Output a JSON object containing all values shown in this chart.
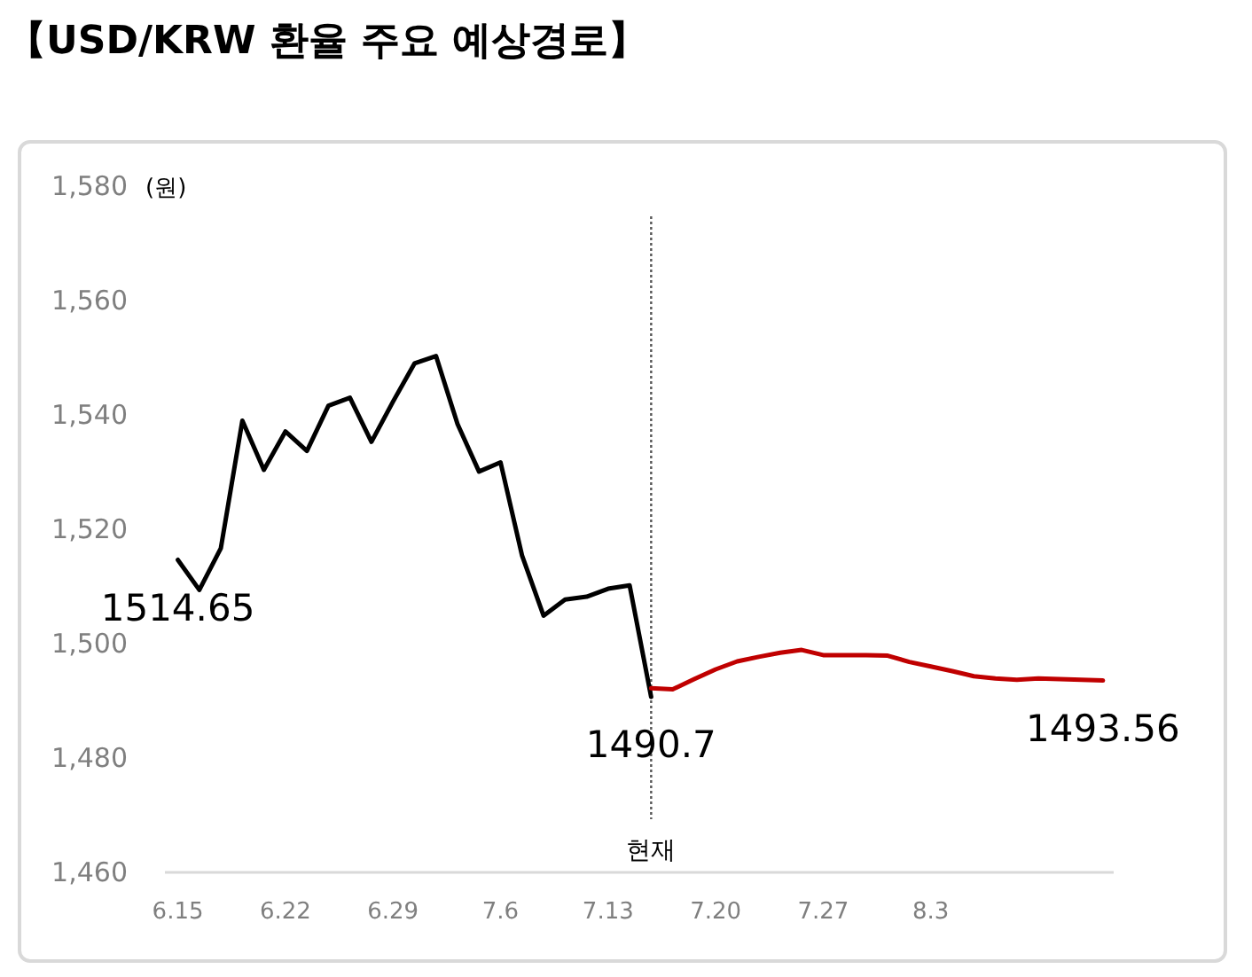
{
  "chart_data": {
    "type": "line",
    "title": "【USD/KRW 환율 주요 예상경로】",
    "ylabel": "(원)",
    "categories": [
      "6.15",
      null,
      null,
      null,
      null,
      "6.22",
      null,
      null,
      null,
      null,
      "6.29",
      null,
      null,
      null,
      null,
      "7.6",
      null,
      null,
      null,
      null,
      "7.13",
      null,
      null,
      null,
      null,
      "7.20",
      null,
      null,
      null,
      null,
      "7.27",
      null,
      null,
      null,
      null,
      "8.3",
      null,
      null,
      null,
      null,
      null,
      null,
      null,
      null
    ],
    "ylim": [
      1460,
      1580
    ],
    "yticks": [
      {
        "value": 1460,
        "label": "1,460"
      },
      {
        "value": 1480,
        "label": "1,480"
      },
      {
        "value": 1500,
        "label": "1,500"
      },
      {
        "value": 1520,
        "label": "1,520"
      },
      {
        "value": 1540,
        "label": "1,540"
      },
      {
        "value": 1560,
        "label": "1,560"
      },
      {
        "value": 1580,
        "label": "1,580"
      }
    ],
    "series": [
      {
        "color": "#000000",
        "values": [
          1514.65,
          1509.4,
          1516.7,
          1539.0,
          1530.4,
          1537.1,
          1533.7,
          1541.6,
          1543.0,
          1535.3,
          1542.3,
          1549.0,
          1550.3,
          1538.4,
          1530.1,
          1531.7,
          1515.4,
          1504.9,
          1507.7,
          1508.2,
          1509.6,
          1510.2,
          1490.7,
          null,
          null,
          null,
          null,
          null,
          null,
          null,
          null,
          null,
          null,
          null,
          null,
          null,
          null,
          null,
          null,
          null,
          null,
          null,
          null,
          null
        ],
        "value_labels": [
          "1514.65",
          null,
          null,
          null,
          null,
          null,
          null,
          null,
          null,
          null,
          null,
          null,
          null,
          null,
          null,
          null,
          null,
          null,
          null,
          null,
          null,
          null,
          "1490.7",
          null,
          null,
          null,
          null,
          null,
          null,
          null,
          null,
          null,
          null,
          null,
          null,
          null,
          null,
          null,
          null,
          null,
          null,
          null,
          null,
          null
        ]
      },
      {
        "color": "#c00000",
        "values": [
          null,
          null,
          null,
          null,
          null,
          null,
          null,
          null,
          null,
          null,
          null,
          null,
          null,
          null,
          null,
          null,
          null,
          null,
          null,
          null,
          null,
          null,
          1492.2,
          1492.0,
          1493.8,
          1495.5,
          1496.9,
          1497.7,
          1498.4,
          1498.9,
          1498.0,
          1498.0,
          1498.0,
          1497.9,
          1496.8,
          1496.0,
          1495.2,
          1494.3,
          1493.9,
          1493.7,
          1493.9,
          1493.8,
          1493.7,
          1493.56
        ],
        "value_labels": [
          null,
          null,
          null,
          null,
          null,
          null,
          null,
          null,
          null,
          null,
          null,
          null,
          null,
          null,
          null,
          null,
          null,
          null,
          null,
          null,
          null,
          null,
          null,
          null,
          null,
          null,
          null,
          null,
          null,
          null,
          null,
          null,
          null,
          null,
          null,
          null,
          null,
          null,
          null,
          null,
          null,
          null,
          null,
          "1493.56"
        ]
      }
    ],
    "annotations": [
      "현재"
    ]
  }
}
